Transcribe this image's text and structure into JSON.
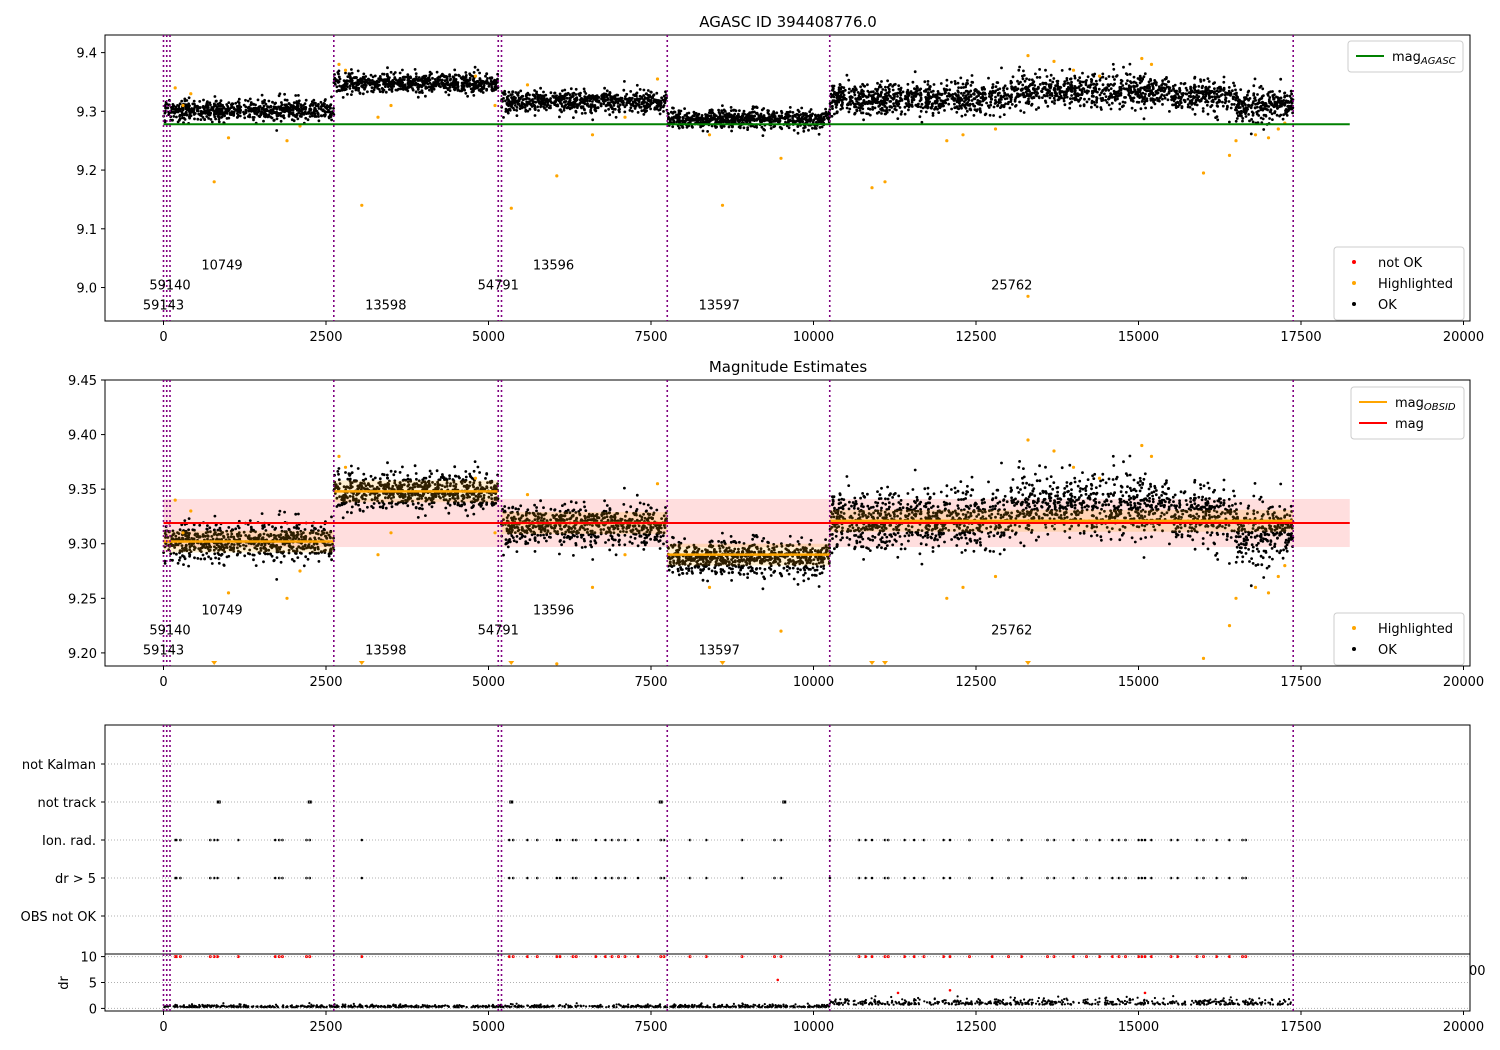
{
  "figure": {
    "background": "#ffffff"
  },
  "chart_data": [
    {
      "id": "top",
      "type": "scatter",
      "title": "AGASC ID 394408776.0",
      "xlim": [
        -900,
        20100
      ],
      "ylim": [
        8.943,
        9.43
      ],
      "xticks": [
        0,
        2500,
        5000,
        7500,
        10000,
        12500,
        15000,
        17500,
        20000
      ],
      "xtick_labels": [
        "0",
        "2500",
        "5000",
        "7500",
        "10000",
        "12500",
        "15000",
        "17500",
        "20000"
      ],
      "yticks": [
        9.0,
        9.1,
        9.2,
        9.3,
        9.4
      ],
      "ytick_labels": [
        "9.0",
        "9.1",
        "9.2",
        "9.3",
        "9.4"
      ],
      "hline": {
        "y": 9.278,
        "x0": 0,
        "x1": 18250,
        "color": "#008000"
      },
      "legend_upper": {
        "position": "upper-right",
        "entries": [
          {
            "label": "mag",
            "sub": "AGASC",
            "color": "#008000",
            "kind": "line"
          }
        ]
      },
      "legend_lower": {
        "position": "lower-right",
        "entries": [
          {
            "label": "not OK",
            "color": "#ff0000",
            "kind": "dot"
          },
          {
            "label": "Highlighted",
            "color": "#ffa500",
            "kind": "dot"
          },
          {
            "label": "OK",
            "color": "#000000",
            "kind": "dot"
          }
        ]
      }
    },
    {
      "id": "mid",
      "type": "scatter",
      "title": "Magnitude Estimates",
      "xlim": [
        -900,
        20100
      ],
      "ylim": [
        9.188,
        9.45
      ],
      "xticks": [
        0,
        2500,
        5000,
        7500,
        10000,
        12500,
        15000,
        17500,
        20000
      ],
      "xtick_labels": [
        "0",
        "2500",
        "5000",
        "7500",
        "10000",
        "12500",
        "15000",
        "17500",
        "20000"
      ],
      "yticks": [
        9.2,
        9.25,
        9.3,
        9.35,
        9.4,
        9.45
      ],
      "ytick_labels": [
        "9.20",
        "9.25",
        "9.30",
        "9.35",
        "9.40",
        "9.45"
      ],
      "hline": {
        "y": 9.319,
        "x0": 0,
        "x1": 18250,
        "color": "#ff0000"
      },
      "band": {
        "y0": 9.297,
        "y1": 9.341,
        "x0": 0,
        "x1": 18250,
        "color": "#ff0000",
        "opacity": 0.13
      },
      "obsid_means": [
        {
          "x0": 0,
          "x1": 2620,
          "y": 9.302
        },
        {
          "x0": 2620,
          "x1": 5150,
          "y": 9.348
        },
        {
          "x0": 5200,
          "x1": 7750,
          "y": 9.319
        },
        {
          "x0": 7750,
          "x1": 10250,
          "y": 9.29
        },
        {
          "x0": 10250,
          "x1": 17380,
          "y": 9.321
        }
      ],
      "legend_upper": {
        "position": "upper-right",
        "entries": [
          {
            "label": "mag",
            "sub": "OBSID",
            "color": "#ffa500",
            "kind": "line"
          },
          {
            "label": "mag",
            "sub": "",
            "color": "#ff0000",
            "kind": "line"
          }
        ]
      },
      "legend_lower": {
        "position": "lower-right",
        "entries": [
          {
            "label": "Highlighted",
            "color": "#ffa500",
            "kind": "dot"
          },
          {
            "label": "OK",
            "color": "#000000",
            "kind": "dot"
          }
        ]
      }
    },
    {
      "id": "flags",
      "type": "scatter",
      "xlim": [
        -900,
        20100
      ],
      "categories": [
        "not Kalman",
        "not track",
        "Ion. rad.",
        "dr > 5",
        "OBS not OK"
      ]
    },
    {
      "id": "dr",
      "type": "scatter",
      "ylabel": "dr",
      "xlim": [
        -900,
        20100
      ],
      "ylim": [
        -0.5,
        10.5
      ],
      "xticks": [
        0,
        2500,
        5000,
        7500,
        10000,
        12500,
        15000,
        17500,
        20000
      ],
      "xtick_labels": [
        "0",
        "2500",
        "5000",
        "7500",
        "10000",
        "12500",
        "15000",
        "17500",
        "20000"
      ],
      "yticks": [
        0,
        5,
        10
      ],
      "ytick_labels": [
        "0",
        "5",
        "10"
      ],
      "stray_label": "00"
    }
  ],
  "obsids": [
    {
      "x": 0,
      "label": "59143"
    },
    {
      "x": 50,
      "label": "59140"
    },
    {
      "x": 100,
      "label": "10749"
    },
    {
      "x": 2620,
      "label": "13598"
    },
    {
      "x": 5150,
      "label": "54791"
    },
    {
      "x": 5200,
      "label": "13596"
    },
    {
      "x": 7750,
      "label": "13597"
    },
    {
      "x": 10250,
      "label": "25762"
    },
    {
      "x": 17380,
      "label": ""
    }
  ]
}
